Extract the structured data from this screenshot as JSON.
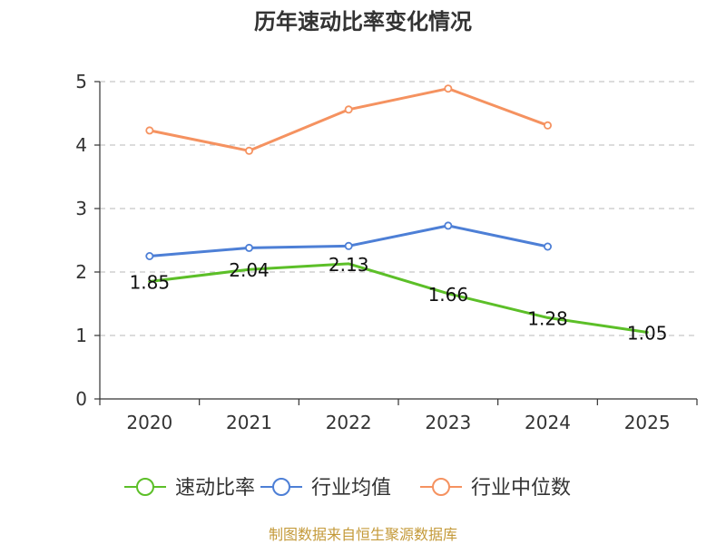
{
  "chart_data": {
    "type": "line",
    "title": "历年速动比率变化情况",
    "categories": [
      "2020",
      "2021",
      "2022",
      "2023",
      "2024",
      "2025"
    ],
    "ylim": [
      0,
      5
    ],
    "yticks": [
      0,
      1,
      2,
      3,
      4,
      5
    ],
    "grid": true,
    "legend_position": "bottom",
    "series": [
      {
        "name": "速动比率",
        "color": "#5cbf28",
        "values": [
          1.85,
          2.04,
          2.13,
          1.66,
          1.28,
          1.05
        ],
        "labels": [
          "1.85",
          "2.04",
          "2.13",
          "1.66",
          "1.28",
          "1.05"
        ],
        "markers": false
      },
      {
        "name": "行业均值",
        "color": "#4d7fd6",
        "values": [
          2.25,
          2.38,
          2.41,
          2.73,
          2.4,
          null
        ],
        "markers": true
      },
      {
        "name": "行业中位数",
        "color": "#f59260",
        "values": [
          4.23,
          3.91,
          4.56,
          4.89,
          4.31,
          null
        ],
        "markers": true
      }
    ]
  },
  "footer": {
    "source": "制图数据来自恒生聚源数据库"
  }
}
